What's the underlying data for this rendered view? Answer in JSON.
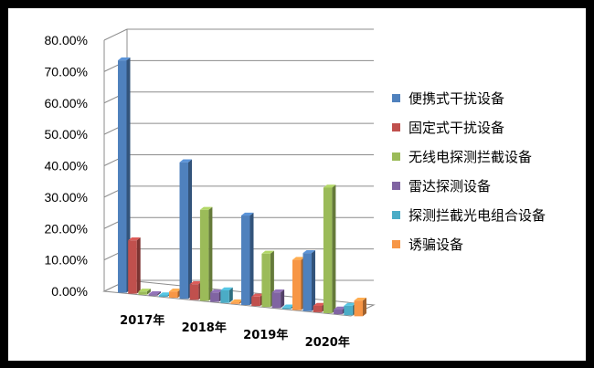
{
  "chart_data": {
    "type": "bar",
    "title": "",
    "xlabel": "",
    "ylabel": "",
    "ylim": [
      0,
      80
    ],
    "y_ticks": [
      "0.00%",
      "10.00%",
      "20.00%",
      "30.00%",
      "40.00%",
      "50.00%",
      "60.00%",
      "70.00%",
      "80.00%"
    ],
    "categories": [
      "2017年",
      "2018年",
      "2019年",
      "2020年"
    ],
    "grid": true,
    "legend_position": "right",
    "series": [
      {
        "name": "便携式干扰设备",
        "color": "#4f81bd",
        "values": [
          74,
          43.5,
          28.5,
          18.5
        ]
      },
      {
        "name": "固定式干扰设备",
        "color": "#c0504d",
        "values": [
          17,
          5,
          3,
          2
        ]
      },
      {
        "name": "无线电探测拦截设备",
        "color": "#9bbb59",
        "values": [
          1,
          29,
          17,
          40
        ]
      },
      {
        "name": "雷达探测设备",
        "color": "#8064a2",
        "values": [
          0.5,
          3,
          5,
          1.5
        ]
      },
      {
        "name": "探测拦截光电组合设备",
        "color": "#4bacc6",
        "values": [
          0.3,
          4,
          0.5,
          3
        ]
      },
      {
        "name": "诱骗设备",
        "color": "#f79646",
        "values": [
          2,
          0.5,
          16,
          5
        ]
      }
    ]
  }
}
